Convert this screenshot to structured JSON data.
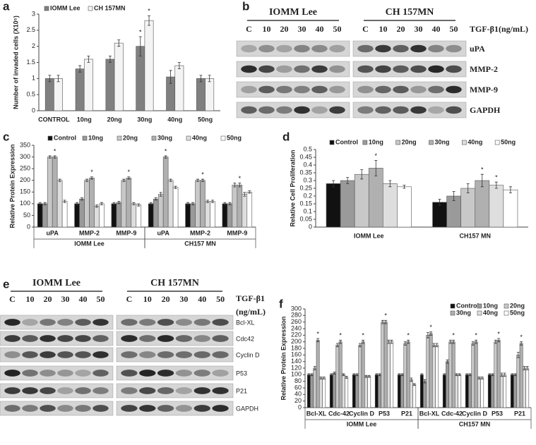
{
  "chart_data": [
    {
      "type": "bar",
      "panel": "a",
      "ylabel": "Number of invaded cells (X10⁵)",
      "categories": [
        "CONTROL",
        "10ng",
        "20ng",
        "30ng",
        "40ng",
        "50ng"
      ],
      "series": [
        {
          "name": "IOMM Lee",
          "color": "#808080",
          "values": [
            1,
            1.3,
            1.6,
            2,
            1.05,
            1
          ],
          "errors": [
            0.1,
            0.1,
            0.1,
            0.3,
            0.2,
            0.1
          ]
        },
        {
          "name": "CH 157MN",
          "color": "#f4f4f4",
          "values": [
            1,
            1.6,
            2.1,
            2.8,
            1.4,
            1
          ],
          "errors": [
            0.1,
            0.1,
            0.1,
            0.15,
            0.1,
            0.1
          ]
        }
      ],
      "annotations": [
        {
          "text": "*",
          "series": 0,
          "index": 3
        },
        {
          "text": "*",
          "series": 1,
          "index": 3
        }
      ],
      "ylim": [
        0,
        3
      ],
      "yticks": [
        0,
        0.5,
        1,
        1.5,
        2,
        2.5,
        3
      ],
      "legend": "top-left"
    },
    {
      "type": "bar",
      "panel": "c",
      "ylabel": "Relative Protein Expression",
      "categories": [
        "uPA",
        "MMP-2",
        "MMP-9",
        "uPA",
        "MMP-2",
        "MMP-9"
      ],
      "groups": [
        "IOMM Lee",
        "CH157 MN"
      ],
      "series": [
        {
          "name": "Control",
          "color": "#111111",
          "values": [
            100,
            100,
            100,
            100,
            100,
            100
          ],
          "errors": [
            5,
            5,
            5,
            5,
            5,
            5
          ]
        },
        {
          "name": "10ng",
          "color": "#9a9a9a",
          "values": [
            100,
            120,
            105,
            120,
            100,
            100
          ],
          "errors": [
            5,
            5,
            5,
            5,
            5,
            5
          ]
        },
        {
          "name": "20ng",
          "color": "#c8c8c8",
          "values": [
            300,
            200,
            200,
            140,
            200,
            180
          ],
          "errors": [
            5,
            5,
            5,
            8,
            5,
            8
          ]
        },
        {
          "name": "30ng",
          "color": "#b0b0b0",
          "values": [
            300,
            210,
            210,
            300,
            200,
            180
          ],
          "errors": [
            5,
            5,
            5,
            5,
            5,
            8
          ]
        },
        {
          "name": "40ng",
          "color": "#dedede",
          "values": [
            200,
            90,
            100,
            200,
            110,
            140
          ],
          "errors": [
            5,
            5,
            5,
            5,
            5,
            8
          ]
        },
        {
          "name": "50ng",
          "color": "#ffffff",
          "values": [
            110,
            100,
            95,
            170,
            110,
            150
          ],
          "errors": [
            5,
            5,
            5,
            5,
            5,
            5
          ]
        }
      ],
      "annotations": [
        {
          "text": "*",
          "series": 3,
          "index": 0
        },
        {
          "text": "*",
          "series": 3,
          "index": 1
        },
        {
          "text": "*",
          "series": 3,
          "index": 2
        },
        {
          "text": "*",
          "series": 3,
          "index": 3
        },
        {
          "text": "*",
          "series": 3,
          "index": 4
        },
        {
          "text": "*",
          "series": 3,
          "index": 5
        }
      ],
      "ylim": [
        0,
        350
      ],
      "yticks": [
        0,
        50,
        100,
        150,
        200,
        250,
        300,
        350
      ],
      "legend": "top"
    },
    {
      "type": "bar",
      "panel": "d",
      "ylabel": "Relative Cell Proliferation",
      "categories": [
        "IOMM Lee",
        "CH157 MN"
      ],
      "series": [
        {
          "name": "Control",
          "color": "#111111",
          "values": [
            0.28,
            0.16
          ],
          "errors": [
            0.02,
            0.02
          ]
        },
        {
          "name": "10ng",
          "color": "#9a9a9a",
          "values": [
            0.3,
            0.2
          ],
          "errors": [
            0.02,
            0.03
          ]
        },
        {
          "name": "20ng",
          "color": "#c8c8c8",
          "values": [
            0.34,
            0.25
          ],
          "errors": [
            0.03,
            0.03
          ]
        },
        {
          "name": "30ng",
          "color": "#b0b0b0",
          "values": [
            0.38,
            0.3
          ],
          "errors": [
            0.05,
            0.04
          ]
        },
        {
          "name": "40ng",
          "color": "#dedede",
          "values": [
            0.28,
            0.27
          ],
          "errors": [
            0.02,
            0.02
          ]
        },
        {
          "name": "50ng",
          "color": "#ffffff",
          "values": [
            0.26,
            0.24
          ],
          "errors": [
            0.01,
            0.02
          ]
        }
      ],
      "annotations": [
        {
          "text": "*",
          "series": 3,
          "index": 0
        },
        {
          "text": "*",
          "series": 3,
          "index": 1
        },
        {
          "text": "*",
          "series": 4,
          "index": 1
        }
      ],
      "ylim": [
        0,
        0.5
      ],
      "yticks": [
        0,
        0.05,
        0.1,
        0.15,
        0.2,
        0.25,
        0.3,
        0.35,
        0.4,
        0.45,
        0.5
      ],
      "legend": "top"
    },
    {
      "type": "bar",
      "panel": "f",
      "ylabel": "Relative Protein Expression",
      "categories": [
        "Bcl-XL",
        "Cdc-42",
        "Cyclin D",
        "P53",
        "P21",
        "Bcl-XL",
        "Cdc-42",
        "Cyclin D",
        "P53",
        "P21"
      ],
      "groups": [
        "IOMM Lee",
        "CH157 MN"
      ],
      "series": [
        {
          "name": "Control",
          "color": "#111111",
          "values": [
            100,
            100,
            100,
            100,
            100,
            100,
            100,
            100,
            100,
            100
          ],
          "errors": [
            3,
            3,
            3,
            3,
            3,
            3,
            3,
            3,
            3,
            3
          ]
        },
        {
          "name": "10ng",
          "color": "#9a9a9a",
          "values": [
            100,
            105,
            100,
            100,
            100,
            80,
            140,
            100,
            100,
            100
          ],
          "errors": [
            3,
            3,
            3,
            3,
            3,
            5,
            5,
            3,
            3,
            3
          ]
        },
        {
          "name": "20ng",
          "color": "#c8c8c8",
          "values": [
            120,
            190,
            190,
            260,
            195,
            220,
            200,
            195,
            200,
            160
          ],
          "errors": [
            5,
            5,
            5,
            5,
            5,
            8,
            5,
            5,
            5,
            8
          ]
        },
        {
          "name": "30ng",
          "color": "#b0b0b0",
          "values": [
            205,
            200,
            200,
            260,
            200,
            225,
            200,
            200,
            205,
            195
          ],
          "errors": [
            5,
            5,
            5,
            5,
            5,
            5,
            5,
            5,
            5,
            5
          ]
        },
        {
          "name": "40ng",
          "color": "#dedede",
          "values": [
            90,
            100,
            95,
            200,
            85,
            190,
            100,
            90,
            100,
            120
          ],
          "errors": [
            3,
            3,
            3,
            5,
            5,
            5,
            3,
            3,
            5,
            5
          ]
        },
        {
          "name": "50ng",
          "color": "#ffffff",
          "values": [
            90,
            92,
            95,
            200,
            70,
            190,
            100,
            90,
            100,
            120
          ],
          "errors": [
            3,
            3,
            3,
            5,
            3,
            5,
            3,
            3,
            5,
            5
          ]
        }
      ],
      "annotations": [
        {
          "text": "*",
          "series": 3,
          "index": 0
        },
        {
          "text": "*",
          "series": 3,
          "index": 1
        },
        {
          "text": "*",
          "series": 3,
          "index": 2
        },
        {
          "text": "*",
          "series": 3,
          "index": 3
        },
        {
          "text": "*",
          "series": 3,
          "index": 4
        },
        {
          "text": "*",
          "series": 3,
          "index": 5
        },
        {
          "text": "*",
          "series": 3,
          "index": 6
        },
        {
          "text": "*",
          "series": 3,
          "index": 7
        },
        {
          "text": "*",
          "series": 3,
          "index": 8
        },
        {
          "text": "*",
          "series": 3,
          "index": 9
        }
      ],
      "ylim": [
        0,
        300
      ],
      "yticks": [
        0,
        20,
        40,
        60,
        80,
        100,
        120,
        140,
        160,
        180,
        200,
        220,
        240,
        260,
        280,
        300
      ],
      "legend": "top-right"
    }
  ],
  "blots": [
    {
      "panel": "b",
      "treatment": [
        "TGF-β1(ng/mL)"
      ],
      "rows": [
        "uPA",
        "MMP-2",
        "MMP-9",
        "GAPDH"
      ],
      "blocks": [
        {
          "title": "IOMM Lee",
          "lanes": [
            "C",
            "10",
            "20",
            "30",
            "40",
            "50"
          ]
        },
        {
          "title": "CH 157MN",
          "lanes": [
            "C",
            "10",
            "20",
            "30",
            "40",
            "50"
          ]
        }
      ]
    },
    {
      "panel": "e",
      "treatment": [
        "TGF-β1",
        "(ng/mL)"
      ],
      "rows": [
        "Bcl-XL",
        "Cdc42",
        "Cyclin D",
        "P53",
        "P21",
        "GAPDH"
      ],
      "blocks": [
        {
          "title": "IOMM Lee",
          "lanes": [
            "C",
            "10",
            "20",
            "30",
            "40",
            "50"
          ]
        },
        {
          "title": "CH 157MN",
          "lanes": [
            "C",
            "10",
            "20",
            "30",
            "40",
            "50"
          ]
        }
      ]
    }
  ]
}
